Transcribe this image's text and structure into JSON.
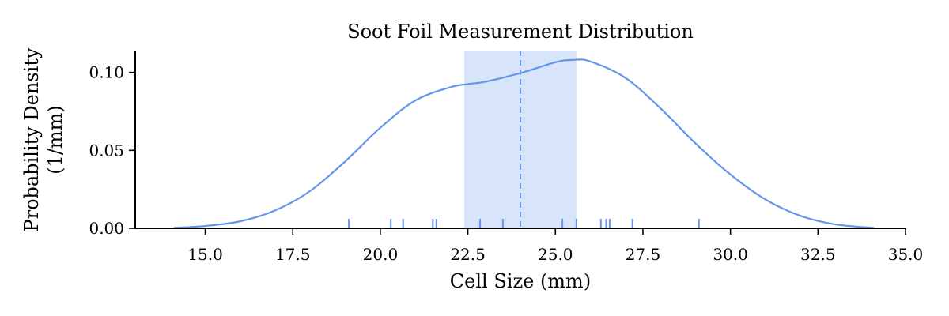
{
  "chart_data": {
    "type": "area",
    "title": "Soot Foil Measurement Distribution",
    "xlabel": "Cell Size (mm)",
    "ylabel_lines": [
      "Probability Density",
      "(1/mm)"
    ],
    "xlim": [
      13.0,
      35.0
    ],
    "ylim": [
      0.0,
      0.114
    ],
    "x_ticks": [
      15.0,
      17.5,
      20.0,
      22.5,
      25.0,
      27.5,
      30.0,
      32.5,
      35.0
    ],
    "x_tick_labels": [
      "15.0",
      "17.5",
      "20.0",
      "22.5",
      "25.0",
      "27.5",
      "30.0",
      "32.5",
      "35.0"
    ],
    "y_ticks": [
      0.0,
      0.05,
      0.1
    ],
    "y_tick_labels": [
      "0.00",
      "0.05",
      "0.10"
    ],
    "grid": false,
    "colors": {
      "line": "#6495ED",
      "band": "#6495ED"
    },
    "kde": {
      "x": [
        14.1,
        15.0,
        16.0,
        17.0,
        18.0,
        19.0,
        20.0,
        21.0,
        22.0,
        22.5,
        23.0,
        24.0,
        25.0,
        25.5,
        26.0,
        27.0,
        28.0,
        29.0,
        30.0,
        31.0,
        32.0,
        33.0,
        34.1
      ],
      "y": [
        0.0003,
        0.0015,
        0.0045,
        0.0115,
        0.024,
        0.043,
        0.0645,
        0.082,
        0.0905,
        0.0925,
        0.094,
        0.0995,
        0.1065,
        0.108,
        0.107,
        0.0965,
        0.077,
        0.0545,
        0.0345,
        0.0185,
        0.008,
        0.0025,
        0.0003
      ]
    },
    "mean": 24.0,
    "band": [
      22.4,
      25.6
    ],
    "rug": [
      19.1,
      20.3,
      20.65,
      21.5,
      21.6,
      22.85,
      23.5,
      25.2,
      25.6,
      26.3,
      26.45,
      26.55,
      27.2,
      29.1
    ]
  }
}
